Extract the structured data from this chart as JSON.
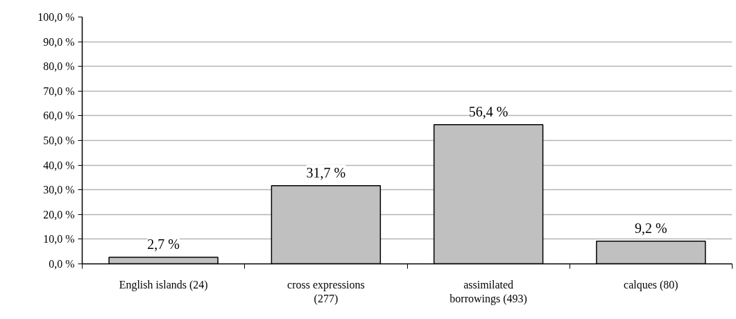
{
  "chart_data": {
    "type": "bar",
    "categories": [
      "English islands (24)",
      "cross expressions (277)",
      "assimilated borrowings (493)",
      "calques (80)"
    ],
    "values": [
      2.7,
      31.7,
      56.4,
      9.2
    ],
    "value_labels": [
      "2,7 %",
      "31,7 %",
      "56,4 %",
      "9,2 %"
    ],
    "color": "#c0c0c0",
    "ylim": [
      0,
      100
    ],
    "yticks": [
      {
        "value": 0,
        "label": "0,0 %"
      },
      {
        "value": 10,
        "label": "10,0 %"
      },
      {
        "value": 20,
        "label": "20,0 %"
      },
      {
        "value": 30,
        "label": "30,0 %"
      },
      {
        "value": 40,
        "label": "40,0 %"
      },
      {
        "value": 50,
        "label": "50,0 %"
      },
      {
        "value": 60,
        "label": "60,0 %"
      },
      {
        "value": 70,
        "label": "70,0 %"
      },
      {
        "value": 80,
        "label": "80,0 %"
      },
      {
        "value": 90,
        "label": "90,0 %"
      },
      {
        "value": 100,
        "label": "100,0 %"
      }
    ],
    "grid": "y"
  }
}
